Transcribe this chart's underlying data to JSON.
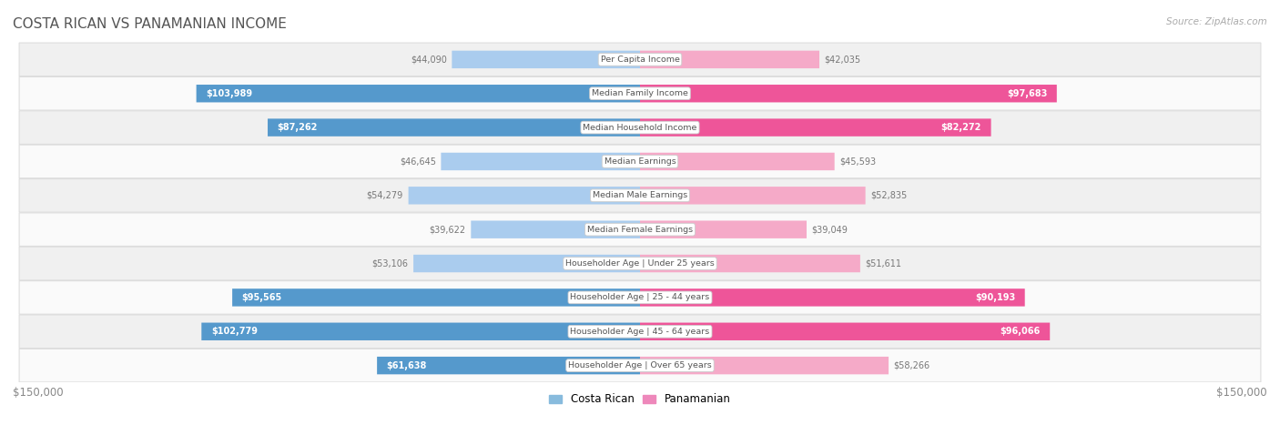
{
  "title": "COSTA RICAN VS PANAMANIAN INCOME",
  "source": "Source: ZipAtlas.com",
  "categories": [
    "Per Capita Income",
    "Median Family Income",
    "Median Household Income",
    "Median Earnings",
    "Median Male Earnings",
    "Median Female Earnings",
    "Householder Age | Under 25 years",
    "Householder Age | 25 - 44 years",
    "Householder Age | 45 - 64 years",
    "Householder Age | Over 65 years"
  ],
  "costa_rican": [
    44090,
    103989,
    87262,
    46645,
    54279,
    39622,
    53106,
    95565,
    102779,
    61638
  ],
  "panamanian": [
    42035,
    97683,
    82272,
    45593,
    52835,
    39049,
    51611,
    90193,
    96066,
    58266
  ],
  "max_val": 150000,
  "blue_light": "#aaccee",
  "blue_dark": "#5599cc",
  "pink_light": "#f5aac8",
  "pink_dark": "#ee5599",
  "blue_legend": "#88bbdd",
  "pink_legend": "#ee88bb",
  "row_bg_even": "#f0f0f0",
  "row_bg_odd": "#fafafa",
  "row_border": "#dddddd",
  "title_color": "#555555",
  "source_color": "#aaaaaa",
  "outside_label_color": "#777777",
  "inside_label_color": "#ffffff",
  "cat_label_color": "#555555",
  "threshold": 60000
}
